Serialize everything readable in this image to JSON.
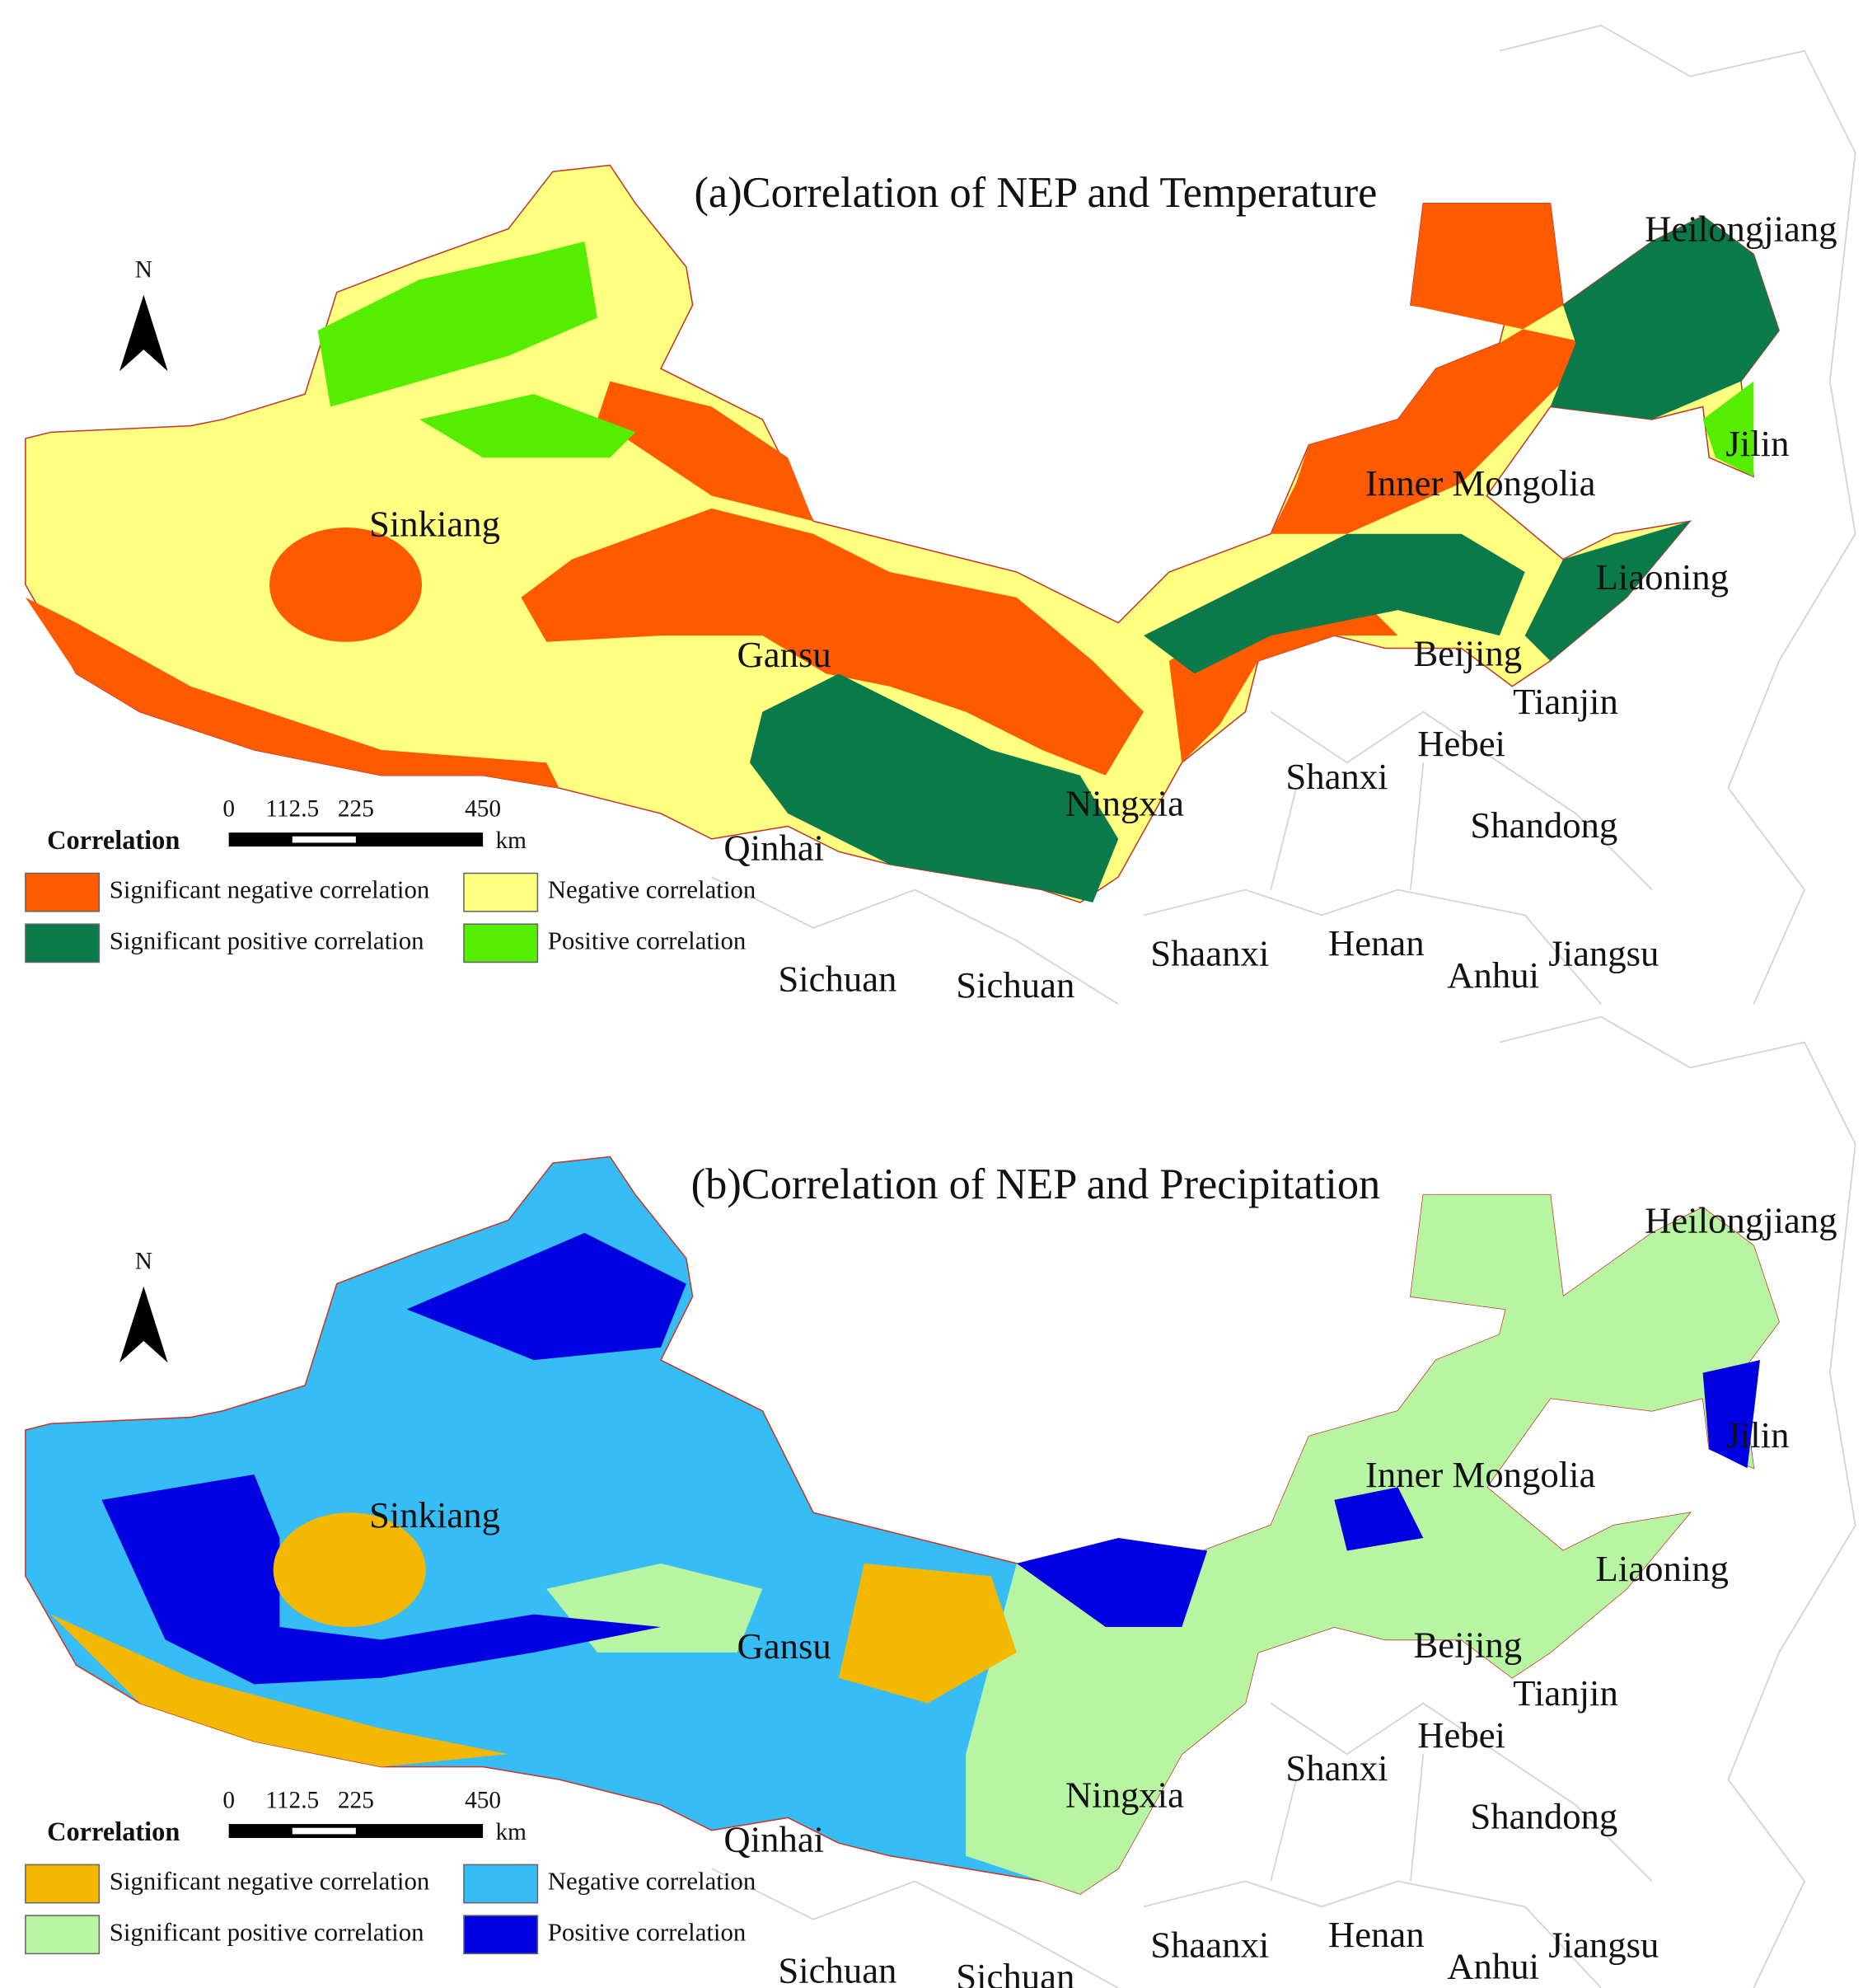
{
  "panels": [
    {
      "title": "(a)Correlation of NEP and Temperature",
      "north": "N",
      "scale": {
        "ticks": [
          0,
          112.5,
          225,
          450
        ],
        "unit": "km"
      },
      "legend": {
        "title": "Correlation",
        "items": [
          {
            "label": "Significant negative correlation",
            "color": "#ff5a00"
          },
          {
            "label": "Negative correlation",
            "color": "#ffff80"
          },
          {
            "label": "Significant positive correlation",
            "color": "#0b7a4a"
          },
          {
            "label": "Positive correlation",
            "color": "#55ee00"
          }
        ]
      },
      "places": [
        "Sinkiang",
        "Heilongjiang",
        "Jilin",
        "Inner Mongolia",
        "Liaoning",
        "Gansu",
        "Beijing",
        "Tianjin",
        "Hebei",
        "Shanxi",
        "Ningxia",
        "Shandong",
        "Qinhai",
        "Shaanxi",
        "Henan",
        "Anhui",
        "Jiangsu",
        "Sichuan",
        "Sichuan"
      ]
    },
    {
      "title": "(b)Correlation of NEP and Precipitation",
      "north": "N",
      "scale": {
        "ticks": [
          0,
          112.5,
          225,
          450
        ],
        "unit": "km"
      },
      "legend": {
        "title": "Correlation",
        "items": [
          {
            "label": "Significant negative correlation",
            "color": "#f5b800"
          },
          {
            "label": "Negative correlation",
            "color": "#36bdf6"
          },
          {
            "label": "Significant positive correlation",
            "color": "#b8f5a2"
          },
          {
            "label": "Positive correlation",
            "color": "#0000e0"
          }
        ]
      },
      "places": [
        "Sinkiang",
        "Heilongjiang",
        "Jilin",
        "Inner Mongolia",
        "Liaoning",
        "Gansu",
        "Beijing",
        "Tianjin",
        "Hebei",
        "Shanxi",
        "Ningxia",
        "Shandong",
        "Qinhai",
        "Shaanxi",
        "Henan",
        "Anhui",
        "Jiangsu",
        "Sichuan",
        "Sichuan"
      ]
    }
  ]
}
